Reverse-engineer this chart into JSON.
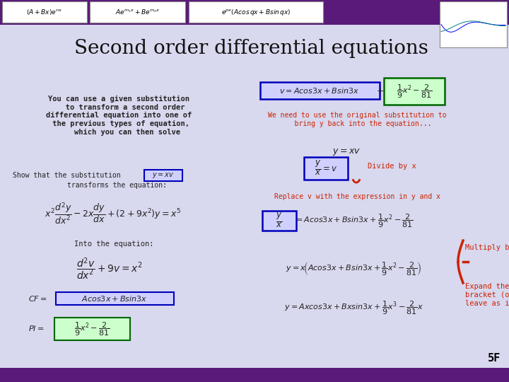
{
  "title": "Second order differential equations",
  "bg_color": "#d8d8ee",
  "header_bar_color": "#5a1a7a",
  "title_color": "#111111",
  "text_color": "#222222",
  "red_text_color": "#cc2200",
  "blue_box_color": "#0000bb",
  "blue_box_fill": "#d0d0ff",
  "green_box_color": "#006600",
  "green_box_fill": "#ccffcc",
  "slide_number": "5F",
  "header_formulas": [
    "$(A + Bx)e^{nx}$",
    "$Ae^{m_1x} + Be^{m_2x}$",
    "$e^{px}(Acos\\,qx + Bsin\\,qx)$"
  ],
  "left_text": "You can use a given substitution\n   to transform a second order\ndifferential equation into one of\n the previous types of equation,\n    which you can then solve",
  "we_need_text": "We need to use the original substitution to\n   bring y back into the equation...",
  "replace_text": "Replace v with the expression in y and x",
  "divide_text": "Divide by x",
  "multiply_text": "Multiply by x",
  "expand_text": "Expand the\nbracket (or\nleave as it is!)"
}
